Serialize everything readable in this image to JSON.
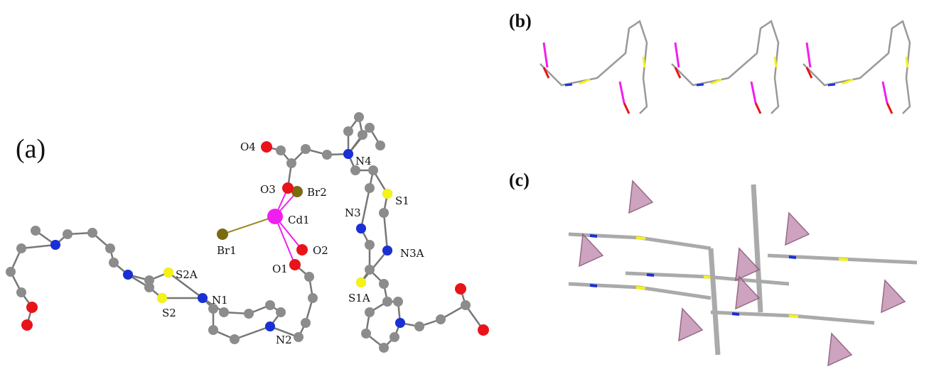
{
  "panels": [
    {
      "label": "(a)",
      "atom_labels": [
        "O4",
        "N4",
        "O3",
        "Br2",
        "S1",
        "Cd1",
        "N3",
        "Br1",
        "O2",
        "N3A",
        "O1",
        "S2A",
        "N1",
        "S2",
        "S1A",
        "N2"
      ]
    },
    {
      "label": "(b)"
    },
    {
      "label": "(c)"
    }
  ]
}
